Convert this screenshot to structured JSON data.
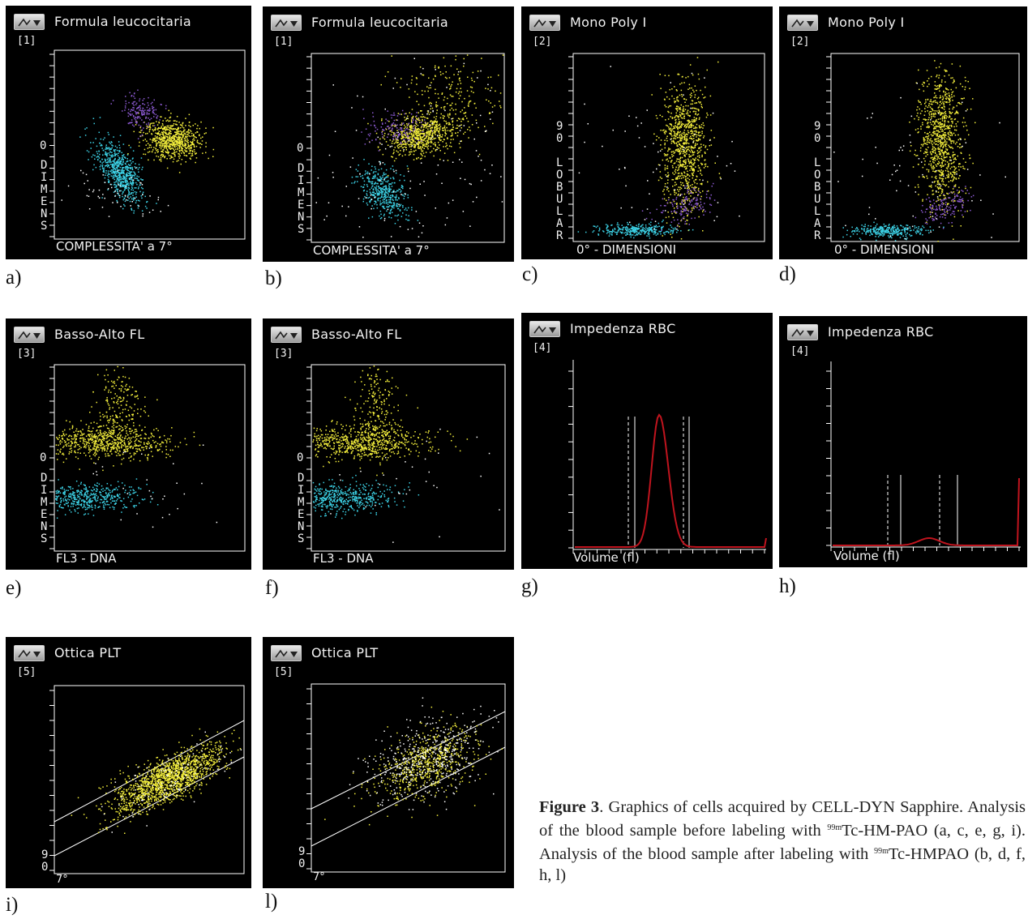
{
  "panels": {
    "a": {
      "letter": "a)",
      "title": "Formula leucocitaria",
      "num": "[1]",
      "xlabel": "COMPLESSITA' a 7°",
      "ylabel": "D\nI\nM\nE\nN\nS",
      "tick": "0"
    },
    "b": {
      "letter": "b)",
      "title": "Formula leucocitaria",
      "num": "[1]",
      "xlabel": "COMPLESSITA' a 7°",
      "ylabel": "D\nI\nM\nE\nN\nS",
      "tick": "0"
    },
    "c": {
      "letter": "c)",
      "title": "Mono Poly I",
      "num": "[2]",
      "xlabel": "0° - DIMENSIONI",
      "ylabel": "9\n0\n \nL\nO\nB\nU\nL\nA\nR"
    },
    "d": {
      "letter": "d)",
      "title": "Mono Poly I",
      "num": "[2]",
      "xlabel": "0° - DIMENSIONI",
      "ylabel": "9\n0\n \nL\nO\nB\nU\nL\nA\nR"
    },
    "e": {
      "letter": "e)",
      "title": "Basso-Alto FL",
      "num": "[3]",
      "xlabel": "FL3 - DNA",
      "ylabel": "D\nI\nM\nE\nN\nS",
      "tick": "0"
    },
    "f": {
      "letter": "f)",
      "title": "Basso-Alto FL",
      "num": "[3]",
      "xlabel": "FL3 - DNA",
      "ylabel": "D\nI\nM\nE\nN\nS",
      "tick": "0"
    },
    "g": {
      "letter": "g)",
      "title": "Impedenza RBC",
      "num": "[4]",
      "xlabel": "Volume (fl)"
    },
    "h": {
      "letter": "h)",
      "title": "Impedenza RBC",
      "num": "[4]",
      "xlabel": "Volume (fl)"
    },
    "i": {
      "letter": "i)",
      "title": "Ottica PLT",
      "num": "[5]",
      "xlabel": "7°",
      "ylabel": "9\n0"
    },
    "l": {
      "letter": "l)",
      "title": "Ottica PLT",
      "num": "[5]",
      "xlabel": "7°",
      "ylabel": "9\n0"
    }
  },
  "caption": {
    "label": "Figure 3",
    "text1": ". Graphics of cells acquired by CELL-DYN Sapphire. Analysis of the blood sample before labeling with ",
    "iso1": "99m",
    "text2": "Tc-HM-PAO (a, c, e, g, i). Analysis of the blood sample after labeling with ",
    "iso2": "99m",
    "text3": "Tc-HMPAO (b, d, f, h, l)"
  },
  "colors": {
    "yellow": "#f5f03c",
    "cyan": "#3cd2e6",
    "purple": "#8c5ad2",
    "white": "#ffffff",
    "red": "#c0141e",
    "panel_bg": "#000000"
  },
  "icons": {
    "panel_button": "waveform-dropdown-icon"
  }
}
